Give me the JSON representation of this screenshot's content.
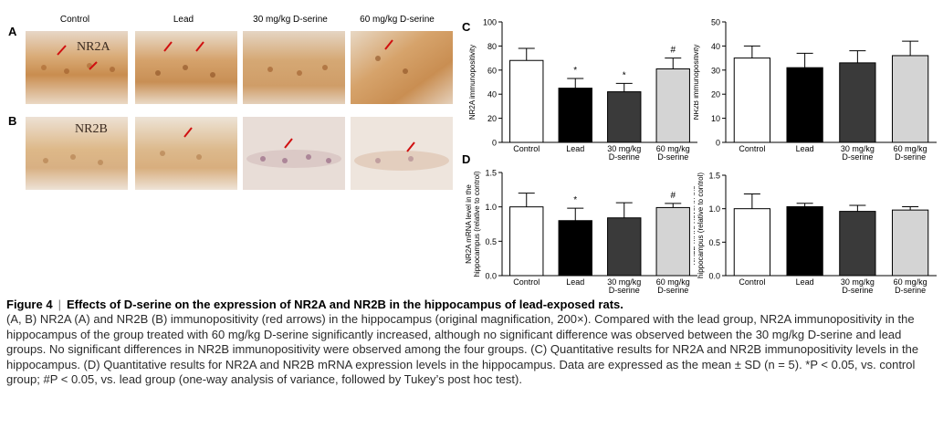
{
  "figure": {
    "groups": [
      "Control",
      "Lead",
      "30 mg/kg D-serine",
      "60 mg/kg D-serine"
    ],
    "panel_labels": {
      "A": "A",
      "B": "B",
      "C": "C",
      "D": "D"
    },
    "micro_labels": {
      "nr2a": "NR2A",
      "nr2b": "NR2B"
    }
  },
  "chart_data": [
    {
      "type": "bar",
      "panel": "C",
      "categories": [
        "Control",
        "Lead",
        "30 mg/kg D-serine",
        "60 mg/kg D-serine"
      ],
      "values": [
        68,
        45,
        42,
        61
      ],
      "errors": [
        10,
        8,
        7,
        9
      ],
      "significance": [
        "",
        "*",
        "*",
        "#"
      ],
      "colors": [
        "#ffffff",
        "#000000",
        "#3a3a3a",
        "#d4d4d4"
      ],
      "ylabel": "NR2A immunopositivity",
      "ylim": [
        0,
        100
      ],
      "yticks": [
        0,
        20,
        40,
        60,
        80,
        100
      ]
    },
    {
      "type": "bar",
      "panel": "C",
      "categories": [
        "Control",
        "Lead",
        "30 mg/kg D-serine",
        "60 mg/kg D-serine"
      ],
      "values": [
        35,
        31,
        33,
        36
      ],
      "errors": [
        5,
        6,
        5,
        6
      ],
      "significance": [
        "",
        "",
        "",
        ""
      ],
      "colors": [
        "#ffffff",
        "#000000",
        "#3a3a3a",
        "#d4d4d4"
      ],
      "ylabel": "NR2B immunopositivity",
      "ylim": [
        0,
        50
      ],
      "yticks": [
        0,
        10,
        20,
        30,
        40,
        50
      ]
    },
    {
      "type": "bar",
      "panel": "D",
      "categories": [
        "Control",
        "Lead",
        "30 mg/kg D-serine",
        "60 mg/kg D-serine"
      ],
      "values": [
        1.0,
        0.8,
        0.84,
        0.99
      ],
      "errors": [
        0.2,
        0.18,
        0.22,
        0.06
      ],
      "significance": [
        "",
        "*",
        "",
        "#"
      ],
      "colors": [
        "#ffffff",
        "#000000",
        "#3a3a3a",
        "#d4d4d4"
      ],
      "ylabel": "NR2A mRNA level in the hippocampus (relative to control)",
      "ylim": [
        0,
        1.5
      ],
      "yticks": [
        0,
        0.5,
        1.0,
        1.5
      ]
    },
    {
      "type": "bar",
      "panel": "D",
      "categories": [
        "Control",
        "Lead",
        "30 mg/kg D-serine",
        "60 mg/kg D-serine"
      ],
      "values": [
        1.0,
        1.03,
        0.96,
        0.98
      ],
      "errors": [
        0.22,
        0.05,
        0.09,
        0.05
      ],
      "significance": [
        "",
        "",
        "",
        ""
      ],
      "colors": [
        "#ffffff",
        "#000000",
        "#3a3a3a",
        "#d4d4d4"
      ],
      "ylabel": "NR2B mRNA level in the hippocampus (relative to control)",
      "ylim": [
        0,
        1.5
      ],
      "yticks": [
        0,
        0.5,
        1.0,
        1.5
      ]
    }
  ],
  "caption": {
    "title": "Figure 4",
    "separator": "|",
    "heading": "Effects of D-serine on the expression of NR2A and NR2B in the hippocampus of lead-exposed rats.",
    "body": "(A, B) NR2A (A) and NR2B (B) immunopositivity (red arrows) in the hippocampus (original magnification, 200×). Compared with the lead group, NR2A immunopositivity in the hippocampus of the group treated with 60 mg/kg D-serine significantly increased, although no significant difference was observed between the 30 mg/kg D-serine and lead groups. No significant differences in NR2B immunopositivity were observed among the four groups. (C) Quantitative results for NR2A and NR2B immunopositivity levels in the hippocampus. (D) Quantitative results for NR2A and NR2B mRNA expression levels in the hippocampus. Data are expressed as the mean ± SD (n = 5). *P < 0.05, vs. control group; #P < 0.05, vs. lead group (one-way analysis of variance, followed by Tukey’s post hoc test)."
  }
}
